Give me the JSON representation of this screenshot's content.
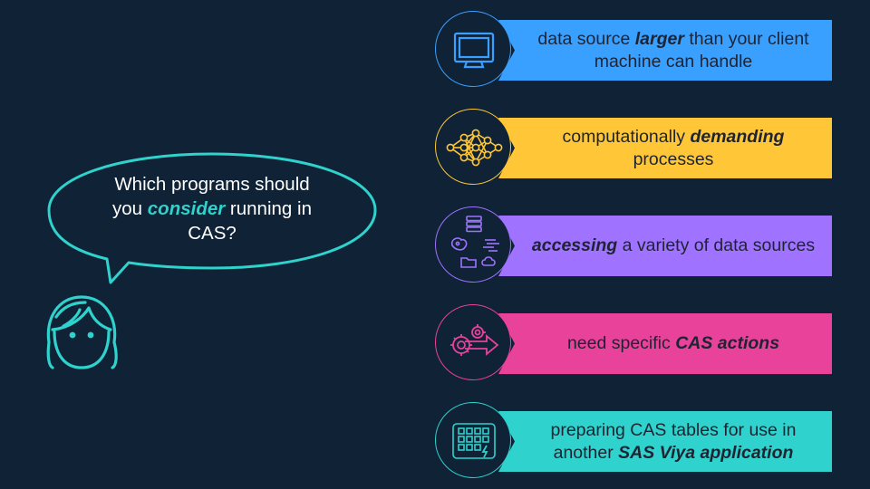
{
  "bubble": {
    "before": "Which programs should you ",
    "emphasis": "consider",
    "after": " running in CAS?"
  },
  "items": [
    {
      "before": "data source ",
      "emphasis": "larger",
      "after": " than your client machine can handle",
      "color": "#3aa0ff",
      "icon": "monitor-icon"
    },
    {
      "before": "computationally ",
      "emphasis": "demanding",
      "after": " processes",
      "color": "#ffc737",
      "icon": "neural-network-icon"
    },
    {
      "before": "",
      "emphasis": "accessing",
      "after": " a variety of data sources",
      "color": "#9f72ff",
      "icon": "data-sources-icon"
    },
    {
      "before": "need specific ",
      "emphasis": "CAS actions",
      "after": "",
      "color": "#e8429b",
      "icon": "gears-arrow-icon"
    },
    {
      "before": "preparing CAS tables for use in another ",
      "emphasis": "SAS Viya application",
      "after": "",
      "color": "#2fd2cc",
      "icon": "app-grid-icon"
    }
  ]
}
